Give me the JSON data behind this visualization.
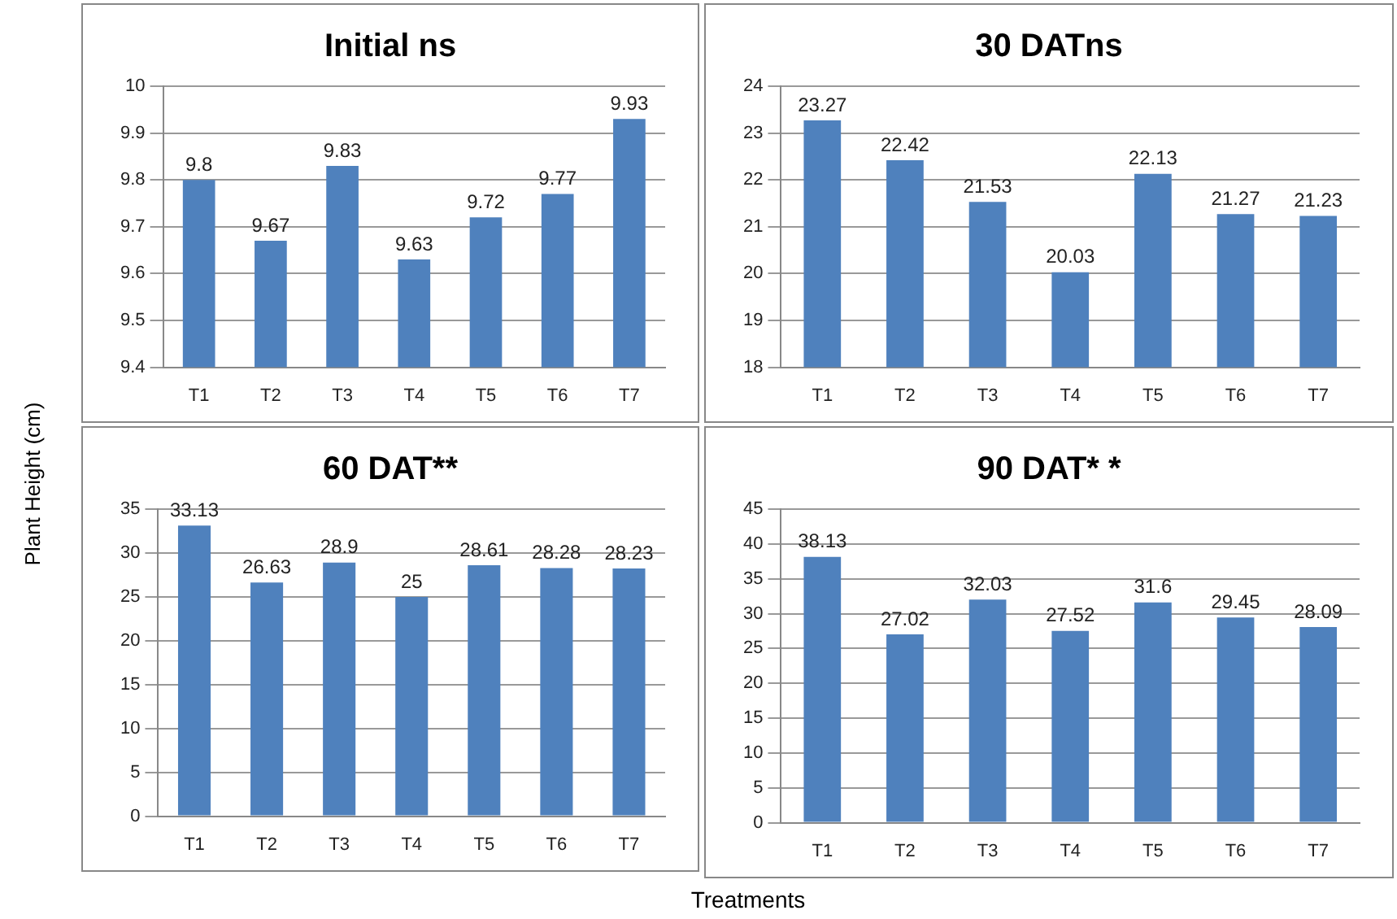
{
  "chart_data": [
    {
      "type": "bar",
      "title": "Initial ns",
      "ylabel": "Plant Height (cm)",
      "categories": [
        "T1",
        "T2",
        "T3",
        "T4",
        "T5",
        "T6",
        "T7"
      ],
      "values": [
        9.8,
        9.67,
        9.83,
        9.63,
        9.72,
        9.77,
        9.93
      ],
      "color": "#4f81bd",
      "ylim": [
        9.4,
        10
      ],
      "yticks": [
        9.4,
        9.5,
        9.6,
        9.7,
        9.8,
        9.9,
        10
      ],
      "grid": "y",
      "legend": false,
      "data_labels": true
    },
    {
      "type": "bar",
      "title": "30 DATns",
      "categories": [
        "T1",
        "T2",
        "T3",
        "T4",
        "T5",
        "T6",
        "T7"
      ],
      "values": [
        23.27,
        22.42,
        21.53,
        20.03,
        22.13,
        21.27,
        21.23
      ],
      "color": "#4f81bd",
      "ylim": [
        18,
        24
      ],
      "yticks": [
        18,
        19,
        20,
        21,
        22,
        23,
        24
      ],
      "grid": "y",
      "legend": false,
      "data_labels": true
    },
    {
      "type": "bar",
      "title": "60 DAT**",
      "categories": [
        "T1",
        "T2",
        "T3",
        "T4",
        "T5",
        "T6",
        "T7"
      ],
      "values": [
        33.13,
        26.63,
        28.9,
        25,
        28.61,
        28.28,
        28.23
      ],
      "color": "#4f81bd",
      "ylim": [
        0,
        35
      ],
      "yticks": [
        0,
        5,
        10,
        15,
        20,
        25,
        30,
        35
      ],
      "grid": "y",
      "legend": false,
      "data_labels": true
    },
    {
      "type": "bar",
      "title": "90 DAT* *",
      "xlabel": "Treatments",
      "categories": [
        "T1",
        "T2",
        "T3",
        "T4",
        "T5",
        "T6",
        "T7"
      ],
      "values": [
        38.13,
        27.02,
        32.03,
        27.52,
        31.6,
        29.45,
        28.09
      ],
      "color": "#4f81bd",
      "ylim": [
        0,
        45
      ],
      "yticks": [
        0,
        5,
        10,
        15,
        20,
        25,
        30,
        35,
        40,
        45
      ],
      "grid": "y",
      "legend": false,
      "data_labels": true
    }
  ]
}
